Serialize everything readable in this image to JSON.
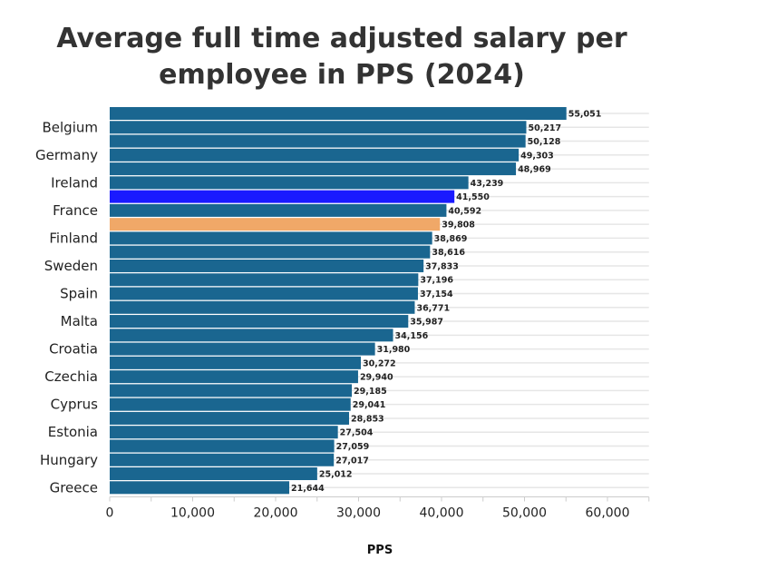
{
  "chart_data": {
    "type": "bar",
    "orientation": "horizontal",
    "title": "Average full time adjusted salary per employee in PPS (2024)",
    "title_lines": [
      "Average full time adjusted salary per",
      "employee in PPS (2024)"
    ],
    "xlabel": "PPS",
    "ylabel": "",
    "xlim": [
      0,
      65000
    ],
    "xticks": [
      0,
      10000,
      20000,
      30000,
      40000,
      50000,
      60000
    ],
    "xtick_labels": [
      "0",
      "10,000",
      "20,000",
      "30,000",
      "40,000",
      "50,000",
      "60,000"
    ],
    "categories": [
      "",
      "Belgium",
      "",
      "Germany",
      "",
      "Ireland",
      "",
      "France",
      "",
      "Finland",
      "",
      "Sweden",
      "",
      "Spain",
      "",
      "Malta",
      "",
      "Croatia",
      "",
      "Czechia",
      "",
      "Cyprus",
      "",
      "Estonia",
      "",
      "Hungary",
      "",
      "Greece"
    ],
    "values": [
      55051,
      50217,
      50128,
      49303,
      48969,
      43239,
      41550,
      40592,
      39808,
      38869,
      38616,
      37833,
      37196,
      37154,
      36771,
      35987,
      34156,
      31980,
      30272,
      29940,
      29185,
      29041,
      28853,
      27504,
      27059,
      27017,
      25012,
      21644
    ],
    "value_labels": [
      "55,051",
      "50,217",
      "50,128",
      "49,303",
      "48,969",
      "43,239",
      "41,550",
      "40,592",
      "39,808",
      "38,869",
      "38,616",
      "37,833",
      "37,196",
      "37,154",
      "36,771",
      "35,987",
      "34,156",
      "31,980",
      "30,272",
      "29,940",
      "29,185",
      "29,041",
      "28,853",
      "27,504",
      "27,059",
      "27,017",
      "25,012",
      "21,644"
    ],
    "highlights": {
      "6": "#1a1aff",
      "8": "#f0a868"
    },
    "bar_color": "#1a6690",
    "grid": true,
    "legend": "none"
  }
}
